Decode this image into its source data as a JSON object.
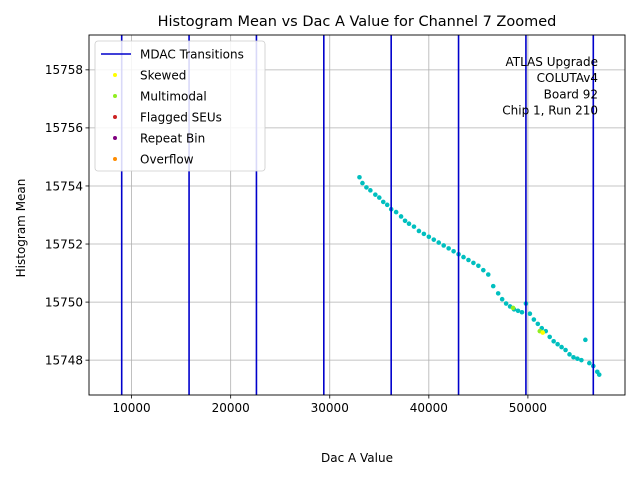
{
  "chart_data": {
    "type": "scatter",
    "title": "Histogram Mean vs Dac A Value for Channel 7 Zoomed",
    "xlabel": "Dac A Value",
    "ylabel": "Histogram Mean",
    "xlim": [
      5700,
      59800
    ],
    "ylim": [
      15746.8,
      15759.2
    ],
    "xticks": [
      10000,
      20000,
      30000,
      40000,
      50000
    ],
    "xtick_labels": [
      "10000",
      "20000",
      "30000",
      "40000",
      "50000"
    ],
    "yticks": [
      15748,
      15750,
      15752,
      15754,
      15756,
      15758
    ],
    "ytick_labels": [
      "15748",
      "15750",
      "15752",
      "15754",
      "15756",
      "15758"
    ],
    "grid": true,
    "mdac_transitions": [
      9000,
      15800,
      22600,
      29400,
      36200,
      43000,
      49800,
      56600
    ],
    "transition_color": "#0000cc",
    "point_color": "#00bfbf",
    "legend_position": "top-left",
    "legend": [
      {
        "label": "MDAC Transitions",
        "kind": "line",
        "color": "#0000cc"
      },
      {
        "label": "Skewed",
        "kind": "dot",
        "color": "#ffff00"
      },
      {
        "label": "Multimodal",
        "kind": "dot",
        "color": "#90ee20"
      },
      {
        "label": "Flagged SEUs",
        "kind": "dot",
        "color": "#cc2222"
      },
      {
        "label": "Repeat Bin",
        "kind": "dot",
        "color": "#800080"
      },
      {
        "label": "Overflow",
        "kind": "dot",
        "color": "#ff8c00"
      }
    ],
    "annotation": [
      "ATLAS Upgrade",
      "COLUTAv4",
      "Board 92",
      "Chip 1, Run 210"
    ],
    "series": [
      {
        "name": "Histogram Mean",
        "color": "#00bfbf",
        "x": [
          33000,
          33300,
          33700,
          34100,
          34600,
          35000,
          35400,
          35800,
          36200,
          36700,
          37200,
          37600,
          38000,
          38500,
          39000,
          39500,
          40000,
          40500,
          41000,
          41500,
          42000,
          42500,
          43000,
          43500,
          44000,
          44500,
          45000,
          45500,
          46000,
          46500,
          47000,
          47400,
          47800,
          48200,
          48600,
          49000,
          49400,
          49800,
          50200,
          50600,
          51000,
          51400,
          51800,
          52200,
          52600,
          53000,
          53400,
          53800,
          54200,
          54600,
          55000,
          55400,
          55800,
          56200,
          56600,
          57000,
          57200
        ],
        "y": [
          15754.3,
          15754.1,
          15753.95,
          15753.85,
          15753.7,
          15753.6,
          15753.45,
          15753.35,
          15753.2,
          15753.1,
          15752.95,
          15752.8,
          15752.7,
          15752.6,
          15752.45,
          15752.35,
          15752.25,
          15752.15,
          15752.05,
          15751.95,
          15751.85,
          15751.75,
          15751.65,
          15751.55,
          15751.45,
          15751.35,
          15751.25,
          15751.1,
          15750.95,
          15750.55,
          15750.3,
          15750.1,
          15749.95,
          15749.85,
          15749.75,
          15749.7,
          15749.65,
          15749.95,
          15749.6,
          15749.4,
          15749.25,
          15749.1,
          15749.0,
          15748.8,
          15748.65,
          15748.55,
          15748.45,
          15748.35,
          15748.2,
          15748.1,
          15748.05,
          15748.0,
          15748.7,
          15747.9,
          15747.8,
          15747.6,
          15747.5
        ]
      },
      {
        "name": "Multimodal",
        "color": "#90ee20",
        "x": [
          48500,
          51200
        ],
        "y": [
          15749.8,
          15749.0
        ]
      },
      {
        "name": "Skewed",
        "color": "#ffff00",
        "x": [
          51500
        ],
        "y": [
          15748.95
        ]
      }
    ]
  }
}
